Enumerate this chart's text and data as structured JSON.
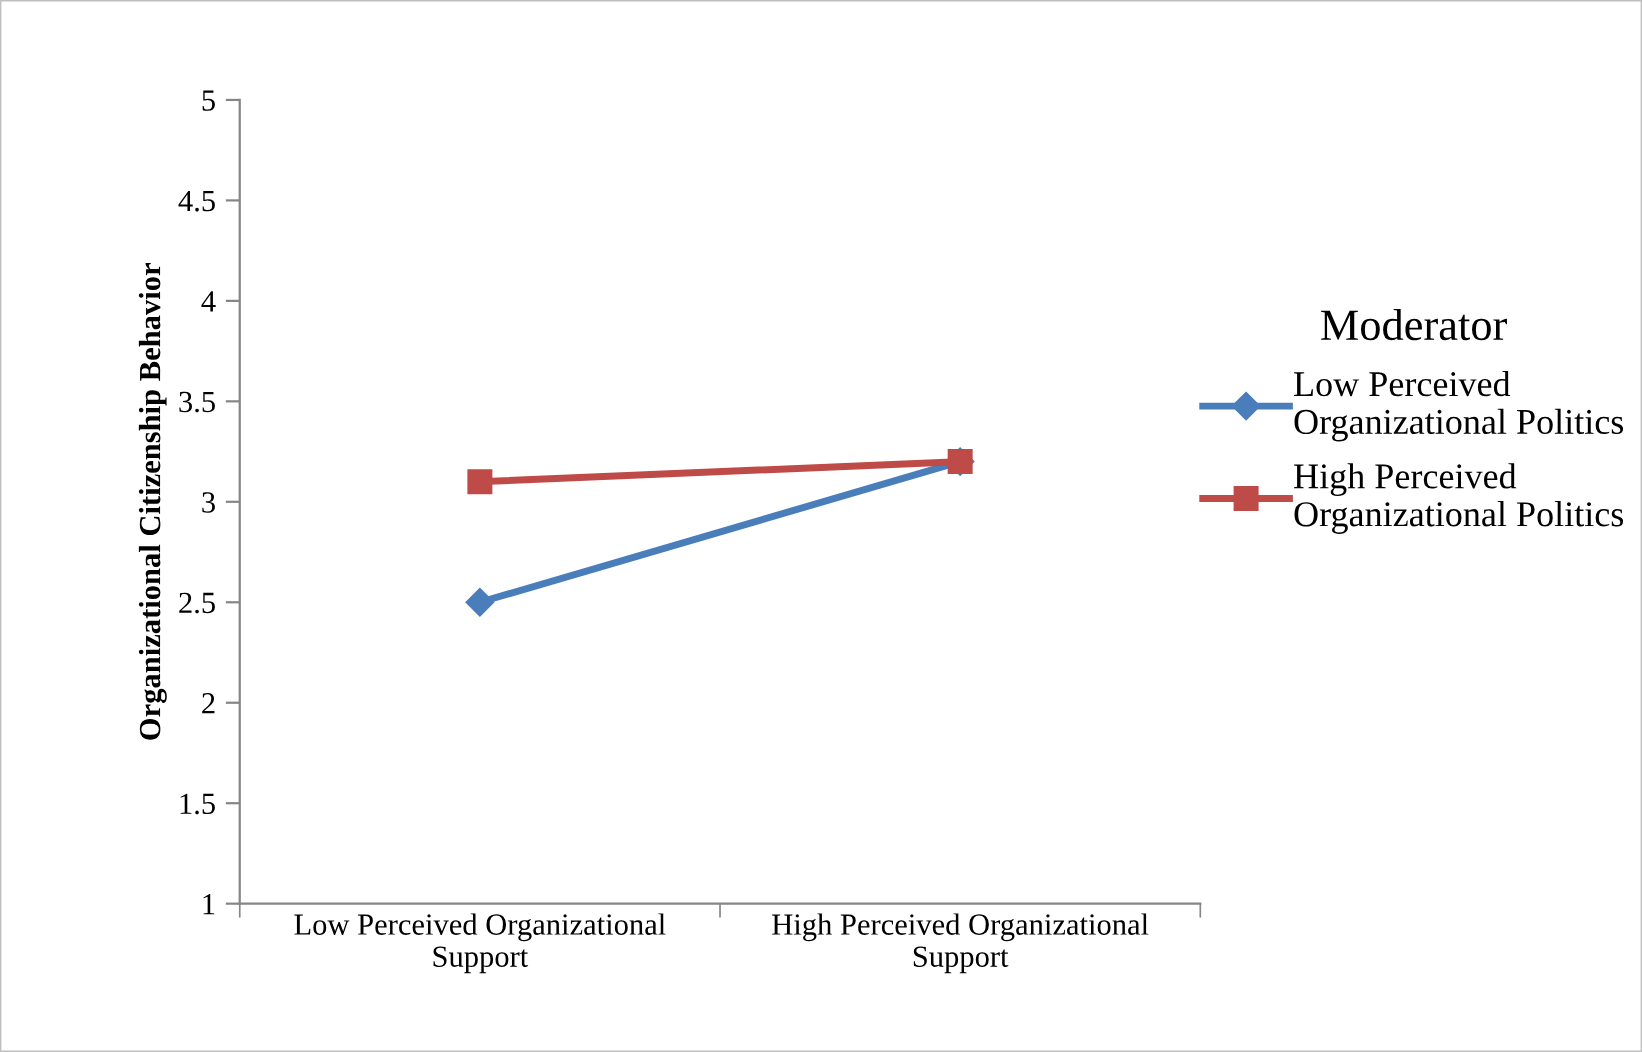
{
  "chart_data": {
    "type": "line",
    "ylabel": "Organizational Citizenship Behavior",
    "legend_title": "Moderator",
    "categories": [
      "Low Perceived Organizational\nSupport",
      "High Perceived Organizational\nSupport"
    ],
    "series": [
      {
        "name": "Low Perceived\nOrganizational Politics",
        "color": "#4a7ebb",
        "values": [
          2.5,
          3.2
        ],
        "marker": "diamond"
      },
      {
        "name": "High Perceived\nOrganizational Politics",
        "color": "#be4b48",
        "values": [
          3.1,
          3.2
        ],
        "marker": "square"
      }
    ],
    "ylim": [
      1,
      5
    ],
    "yticks": [
      1,
      1.5,
      2,
      2.5,
      3,
      3.5,
      4,
      4.5,
      5
    ],
    "grid": false,
    "legend": "right",
    "line_style": "solid"
  }
}
